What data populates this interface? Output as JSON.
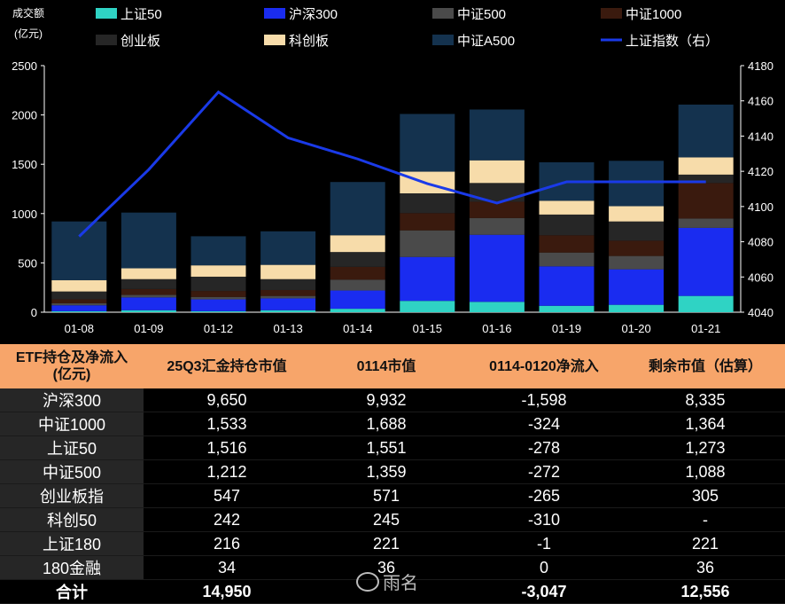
{
  "chart_data": {
    "type": "bar",
    "stacked": true,
    "y_unit_label": [
      "成交额",
      "(亿元)"
    ],
    "categories": [
      "01-08",
      "01-09",
      "01-12",
      "01-13",
      "01-14",
      "01-15",
      "01-16",
      "01-19",
      "01-20",
      "01-21"
    ],
    "ylim": [
      0,
      2500
    ],
    "yticks": [
      0,
      500,
      1000,
      1500,
      2000,
      2500
    ],
    "y2lim": [
      4040,
      4180
    ],
    "y2ticks": [
      4040,
      4060,
      4080,
      4100,
      4120,
      4140,
      4160,
      4180
    ],
    "series": [
      {
        "name": "上证50",
        "color": "#2fd3c4",
        "values": [
          10,
          20,
          10,
          20,
          35,
          115,
          105,
          65,
          75,
          165
        ]
      },
      {
        "name": "沪深300",
        "color": "#1a2cf0",
        "values": [
          60,
          130,
          120,
          120,
          185,
          445,
          680,
          400,
          360,
          690
        ]
      },
      {
        "name": "中证500",
        "color": "#4a4a4a",
        "values": [
          20,
          25,
          25,
          25,
          110,
          270,
          170,
          140,
          135,
          95
        ]
      },
      {
        "name": "中证1000",
        "color": "#3a1a0e",
        "values": [
          40,
          60,
          60,
          60,
          130,
          175,
          165,
          175,
          155,
          360
        ]
      },
      {
        "name": "创业板",
        "color": "#262626",
        "values": [
          80,
          100,
          145,
          110,
          150,
          200,
          190,
          210,
          195,
          85
        ]
      },
      {
        "name": "科创板",
        "color": "#f7dcaa",
        "values": [
          115,
          110,
          115,
          145,
          170,
          220,
          230,
          140,
          155,
          175
        ]
      },
      {
        "name": "中证A500",
        "color": "#14324e",
        "values": [
          595,
          565,
          295,
          340,
          540,
          585,
          515,
          390,
          460,
          535
        ]
      }
    ],
    "line": {
      "name": "上证指数（右）",
      "color": "#1a3ae8",
      "values": [
        4083,
        4121,
        4165,
        4139,
        4127,
        4113,
        4102,
        4114,
        4114,
        4114
      ]
    }
  },
  "table": {
    "headers": [
      "ETF持仓及净流入\n(亿元)",
      "25Q3汇金持仓市值",
      "0114市值",
      "0114-0120净流入",
      "剩余市值（估算）"
    ],
    "rows": [
      [
        "沪深300",
        "9,650",
        "9,932",
        "-1,598",
        "8,335"
      ],
      [
        "中证1000",
        "1,533",
        "1,688",
        "-324",
        "1,364"
      ],
      [
        "上证50",
        "1,516",
        "1,551",
        "-278",
        "1,273"
      ],
      [
        "中证500",
        "1,212",
        "1,359",
        "-272",
        "1,088"
      ],
      [
        "创业板指",
        "547",
        "571",
        "-265",
        "305"
      ],
      [
        "科创50",
        "242",
        "245",
        "-310",
        "-"
      ],
      [
        "上证180",
        "216",
        "221",
        "-1",
        "221"
      ],
      [
        "180金融",
        "34",
        "36",
        "0",
        "36"
      ]
    ],
    "total": [
      "合计",
      "14,950",
      "",
      "-3,047",
      "12,556"
    ]
  },
  "watermark": "雨名"
}
